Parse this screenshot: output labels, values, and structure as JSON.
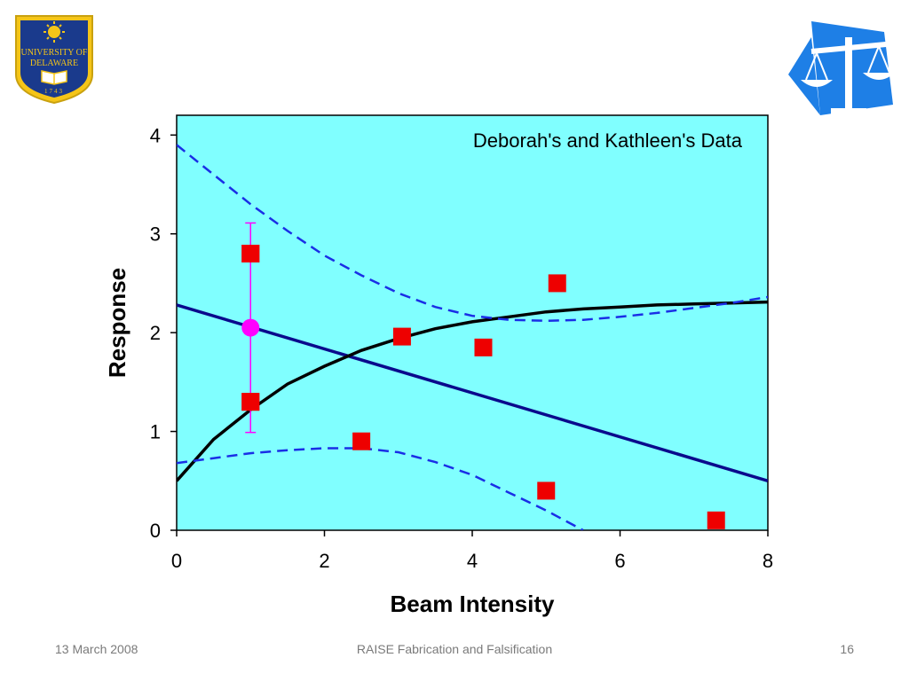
{
  "logos": {
    "university": {
      "name": "University of Delaware",
      "text_line1": "UNIVERSITY OF",
      "text_line2": "DELAWARE",
      "year": "1743",
      "colors": {
        "shield": "#1a3a8c",
        "gold": "#f5c518"
      }
    },
    "ethics": {
      "icon": "scales-of-justice-icon",
      "color": "#1e7fe6"
    }
  },
  "footer": {
    "date": "13 March 2008",
    "title": "RAISE Fabrication and Falsification",
    "page": "16"
  },
  "chart_data": {
    "type": "scatter",
    "title": "Deborah's and Kathleen's Data",
    "xlabel": "Beam Intensity",
    "ylabel": "Response",
    "xlim": [
      0,
      8
    ],
    "ylim": [
      0,
      4.2
    ],
    "xticks": [
      "0",
      "2",
      "4",
      "6",
      "8"
    ],
    "yticks": [
      "0",
      "1",
      "2",
      "3",
      "4"
    ],
    "grid": false,
    "plot_background": "#80ffff",
    "series": [
      {
        "kind": "points",
        "marker": "square",
        "color": "#ee0000",
        "x": [
          1.0,
          1.0,
          2.5,
          3.05,
          4.15,
          5.15,
          5.0,
          7.3
        ],
        "y": [
          2.8,
          1.3,
          0.9,
          1.96,
          1.85,
          2.5,
          0.4,
          0.1
        ]
      },
      {
        "kind": "mean-with-errorbar",
        "marker": "circle",
        "color": "#ff00ff",
        "x": 1.0,
        "y": 2.05,
        "error_low": 0.99,
        "error_high": 3.11
      },
      {
        "kind": "line",
        "style": "solid",
        "color": "#0a0a8c",
        "x": [
          0,
          8
        ],
        "y": [
          2.28,
          0.5
        ]
      },
      {
        "kind": "line",
        "style": "solid",
        "color": "#000000",
        "x": [
          0,
          0.5,
          1,
          1.5,
          2,
          2.5,
          3,
          3.5,
          4,
          4.5,
          5,
          5.5,
          6,
          6.5,
          7,
          7.5,
          8
        ],
        "y": [
          0.5,
          0.92,
          1.22,
          1.48,
          1.66,
          1.82,
          1.94,
          2.04,
          2.11,
          2.16,
          2.21,
          2.24,
          2.26,
          2.28,
          2.29,
          2.3,
          2.31
        ]
      },
      {
        "kind": "line",
        "style": "dashed",
        "color": "#1a2ee6",
        "x": [
          0,
          0.5,
          1,
          1.5,
          2,
          2.5,
          3,
          3.5,
          4,
          4.5,
          5,
          5.5,
          6,
          6.5,
          7,
          7.5,
          8
        ],
        "y": [
          3.9,
          3.6,
          3.3,
          3.03,
          2.78,
          2.58,
          2.4,
          2.26,
          2.17,
          2.13,
          2.12,
          2.13,
          2.16,
          2.2,
          2.25,
          2.3,
          2.36
        ]
      },
      {
        "kind": "line",
        "style": "dashed",
        "color": "#1a2ee6",
        "x": [
          0,
          0.5,
          1,
          1.5,
          2,
          2.5,
          3,
          3.5,
          4,
          4.5,
          5,
          5.5
        ],
        "y": [
          0.68,
          0.73,
          0.78,
          0.81,
          0.83,
          0.83,
          0.79,
          0.69,
          0.56,
          0.38,
          0.2,
          0.0
        ]
      }
    ]
  }
}
